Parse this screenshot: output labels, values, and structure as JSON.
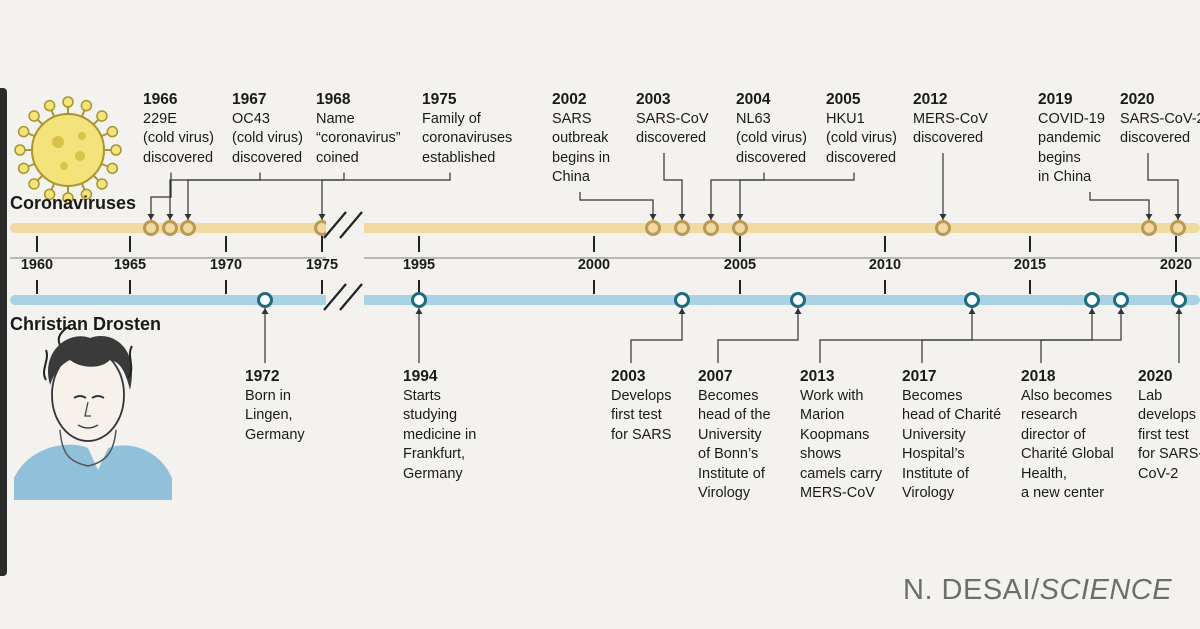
{
  "tracks": {
    "coronaviruses": {
      "label": "Coronaviruses",
      "color": "#f0d9a2",
      "marker_color": "#b99a55"
    },
    "drosten": {
      "label": "Christian Drosten",
      "color": "#a9d2e4",
      "marker_color": "#1f6b80"
    }
  },
  "axis": {
    "ticks": [
      "1960",
      "1965",
      "1970",
      "1975",
      "1995",
      "2000",
      "2005",
      "2010",
      "2015",
      "2020"
    ],
    "break_between": [
      "1975",
      "1995"
    ]
  },
  "virus_events": [
    {
      "year": "1966",
      "text": "229E\n(cold virus)\ndiscovered"
    },
    {
      "year": "1967",
      "text": "OC43\n(cold virus)\ndiscovered"
    },
    {
      "year": "1968",
      "text": "Name\n“coronavirus”\ncoined"
    },
    {
      "year": "1975",
      "text": "Family of\ncoronaviruses\nestablished"
    },
    {
      "year": "2002",
      "text": "SARS\noutbreak\nbegins in\nChina"
    },
    {
      "year": "2003",
      "text": "SARS-CoV\ndiscovered"
    },
    {
      "year": "2004",
      "text": "NL63\n(cold virus)\ndiscovered"
    },
    {
      "year": "2005",
      "text": "HKU1\n(cold virus)\ndiscovered"
    },
    {
      "year": "2012",
      "text": "MERS-CoV\ndiscovered"
    },
    {
      "year": "2019",
      "text": "COVID-19\npandemic\nbegins\nin China"
    },
    {
      "year": "2020",
      "text": "SARS-CoV-2\ndiscovered"
    }
  ],
  "drosten_events": [
    {
      "year": "1972",
      "text": "Born in\nLingen,\nGermany"
    },
    {
      "year": "1994",
      "text": "Starts\nstudying\nmedicine in\nFrankfurt,\nGermany"
    },
    {
      "year": "2003",
      "text": "Develops\nfirst test\nfor SARS"
    },
    {
      "year": "2007",
      "text": "Becomes\nhead of the\nUniversity\nof Bonn’s\nInstitute of\nVirology"
    },
    {
      "year": "2013",
      "text": "Work with\nMarion\nKoopmans\nshows\ncamels carry\nMERS-CoV"
    },
    {
      "year": "2017",
      "text": "Becomes\nhead of Charité\nUniversity\nHospital’s\nInstitute of\nVirology"
    },
    {
      "year": "2018",
      "text": "Also becomes\nresearch\ndirector of\nCharité Global\nHealth,\na new center"
    },
    {
      "year": "2020",
      "text": "Lab\ndevelops\nfirst test\nfor SARS-\nCoV-2"
    }
  ],
  "credit": {
    "author": "N. DESAI/",
    "source": "SCIENCE"
  },
  "illustrations": [
    "virus-illustration",
    "portrait-illustration"
  ]
}
